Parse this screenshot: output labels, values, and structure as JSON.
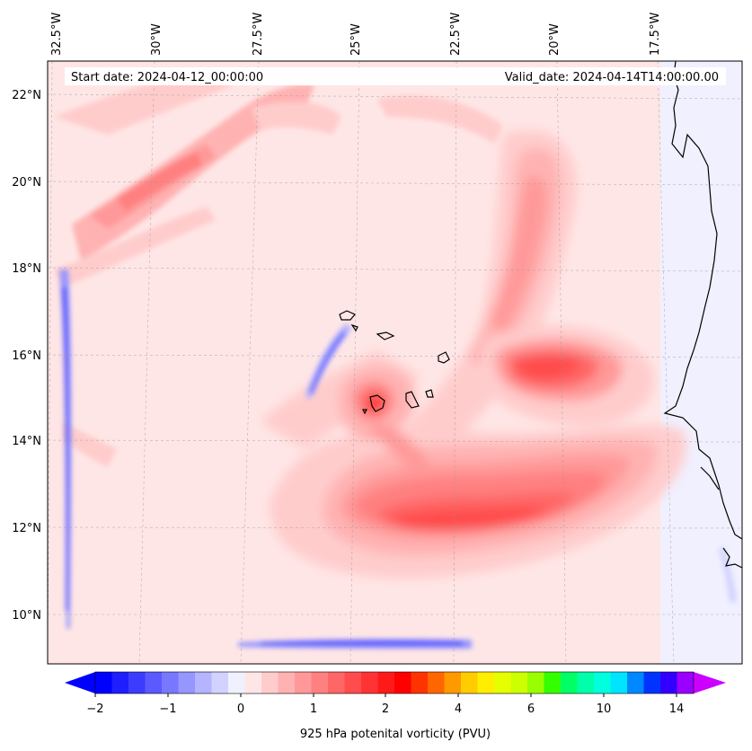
{
  "header": {
    "start_date": "Start date: 2024-04-12_00:00:00",
    "valid_date": "Valid_date: 2024-04-14T14:00:00.00"
  },
  "axes": {
    "lon_labels": [
      "32.5°W",
      "30°W",
      "27.5°W",
      "25°W",
      "22.5°W",
      "20°W",
      "17.5°W"
    ],
    "lat_labels": [
      "22°N",
      "20°N",
      "18°N",
      "16°N",
      "14°N",
      "12°N",
      "10°N"
    ]
  },
  "colorbar": {
    "label": "925 hPa potenital vorticity (PVU)",
    "ticks": [
      "−2",
      "−1",
      "0",
      "1",
      "2",
      "4",
      "6",
      "10",
      "14"
    ],
    "colors": [
      "#0000ff",
      "#1e1eff",
      "#3c3cff",
      "#5a5aff",
      "#7878ff",
      "#9696ff",
      "#b4b4ff",
      "#d2d2ff",
      "#f0f0ff",
      "#ffe6e6",
      "#ffcccc",
      "#ffb2b2",
      "#ff9999",
      "#ff8080",
      "#ff6666",
      "#ff4c4c",
      "#ff3333",
      "#ff1a1a",
      "#ff0000",
      "#ff3300",
      "#ff6600",
      "#ff9900",
      "#ffcc00",
      "#ffee00",
      "#e6ff00",
      "#ccff00",
      "#99ff00",
      "#33ff00",
      "#00ff66",
      "#00ffaa",
      "#00ffdd",
      "#00e5ff",
      "#0088ff",
      "#0033ff",
      "#3300ff",
      "#9900ff"
    ],
    "min_extend_color": "#0000ff",
    "max_extend_color": "#cc00ff"
  }
}
